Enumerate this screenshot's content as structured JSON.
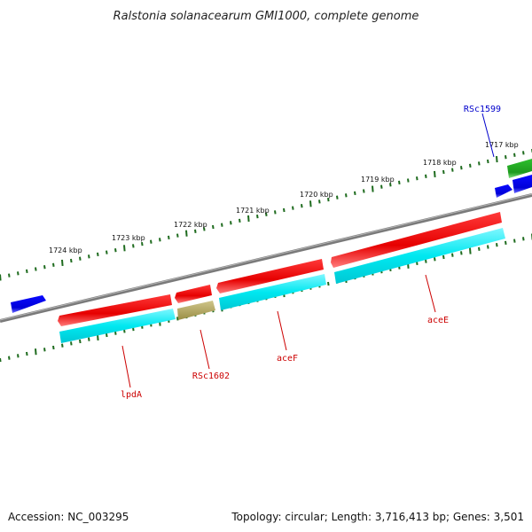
{
  "title": "Ralstonia solanacearum GMI1000, complete genome",
  "footer": {
    "accession": "Accession: NC_003295",
    "summary": "Topology: circular; Length: 3,716,413 bp; Genes: 3,501"
  },
  "kbp_labels": [
    "1717 kbp",
    "1718 kbp",
    "1719 kbp",
    "1720 kbp",
    "1721 kbp",
    "1722 kbp",
    "1723 kbp",
    "1724 kbp"
  ],
  "gene_labels": [
    {
      "key": "lpdA",
      "text": "lpdA",
      "color": "#cc0000"
    },
    {
      "key": "RSc1602",
      "text": "RSc1602",
      "color": "#cc0000"
    },
    {
      "key": "aceF",
      "text": "aceF",
      "color": "#cc0000"
    },
    {
      "key": "aceE",
      "text": "aceE",
      "color": "#cc0000"
    },
    {
      "key": "RSc1599",
      "text": "RSc1599",
      "color": "#0000cc"
    }
  ],
  "colors": {
    "backbone": "#7a7a7a",
    "tick": "#1e6b1e",
    "cds_red": "#ee0000",
    "cds_cyan": "#00e5ee",
    "cds_olive": "#b5a95a",
    "cds_blue": "#0000ee",
    "cds_green": "#22aa22"
  }
}
